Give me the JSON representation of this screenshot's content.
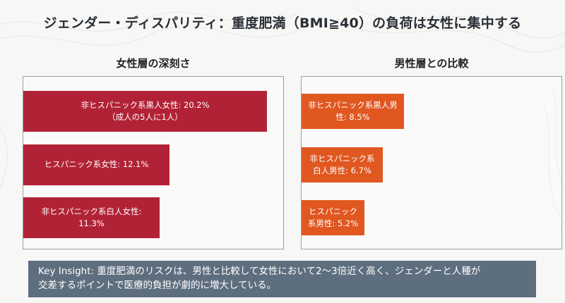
{
  "title": "ジェンダー・ディスパリティ：重度肥満（BMI≧40）の負荷は女性に集中する",
  "chart_data": [
    {
      "type": "bar",
      "orientation": "horizontal",
      "title": "女性層の深刻さ",
      "color": "#b22236",
      "categories": [
        "非ヒスパニック系黒人女性",
        "ヒスパニック系女性",
        "非ヒスパニック系白人女性"
      ],
      "values": [
        20.2,
        12.1,
        11.3
      ],
      "labels": [
        "非ヒスパニック系黒人女性: 20.2%",
        "ヒスパニック系女性: 12.1%",
        "非ヒスパニック系白人女性: 11.3%"
      ],
      "notes": [
        "（成人の5人に1人）",
        "",
        ""
      ]
    },
    {
      "type": "bar",
      "orientation": "horizontal",
      "title": "男性層との比較",
      "color": "#e0571f",
      "categories": [
        "非ヒスパニック系黒人男性",
        "非ヒスパニック系白人男性",
        "ヒスパニック系男性"
      ],
      "values": [
        8.5,
        6.7,
        5.2
      ],
      "labels": [
        "非ヒスパニック系黒人男性: 8.5%",
        "非ヒスパニック系白人男性: 6.7%",
        "ヒスパニック系男性: 5.2%"
      ],
      "notes": [
        "",
        "",
        ""
      ]
    }
  ],
  "insight": {
    "line1": "Key Insight: 重度肥満のリスクは、男性と比較して女性において2〜3倍近く高く、ジェンダーと人種が",
    "line2": "交差するポイントで医療的負担が劇的に増大している。"
  }
}
